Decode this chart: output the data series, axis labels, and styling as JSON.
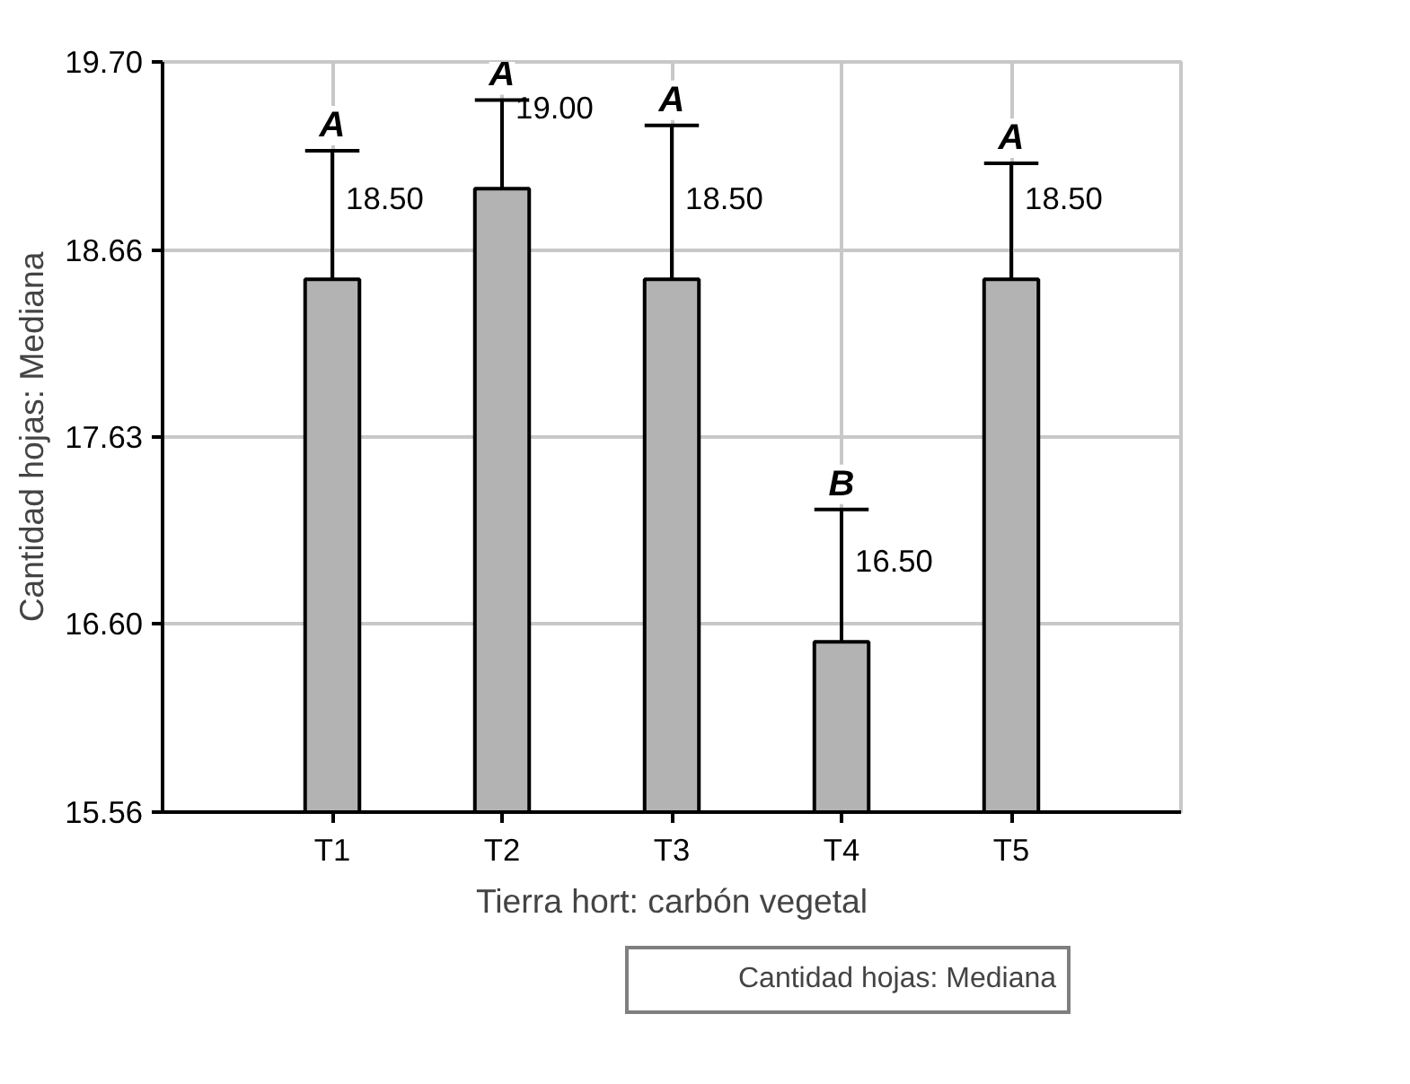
{
  "chart_data": {
    "type": "bar",
    "xlabel": "Tierra hort: carbón vegetal",
    "ylabel": "Cantidad hojas: Mediana",
    "categories": [
      "T1",
      "T2",
      "T3",
      "T4",
      "T5"
    ],
    "series": [
      {
        "name": "Cantidad hojas: Mediana",
        "color": "#b3b3b3",
        "values": [
          18.5,
          19.0,
          18.5,
          16.5,
          18.5
        ],
        "errors": [
          [
            18.5,
            19.21
          ],
          [
            19.0,
            19.49
          ],
          [
            18.5,
            19.35
          ],
          [
            16.5,
            17.23
          ],
          [
            18.5,
            19.14
          ]
        ],
        "value_labels": [
          "18.50",
          "19.00",
          "18.50",
          "16.50",
          "18.50"
        ]
      }
    ],
    "ylim": [
      15.56,
      19.7
    ],
    "yticks": [
      15.56,
      {
        "value": 16.6,
        "label": "16.60"
      },
      17.63,
      18.66,
      {
        "value": 19.7,
        "label": "19.70"
      }
    ],
    "annotations": [
      {
        "text": "A",
        "x": "T1",
        "y": 19.21
      },
      {
        "text": "A",
        "x": "T2",
        "y": 19.49
      },
      {
        "text": "A",
        "x": "T3",
        "y": 19.35
      },
      {
        "text": "B",
        "x": "T4",
        "y": 17.23
      },
      {
        "text": "A",
        "x": "T5",
        "y": 19.14
      }
    ],
    "grid": true,
    "legend": "bottom"
  }
}
